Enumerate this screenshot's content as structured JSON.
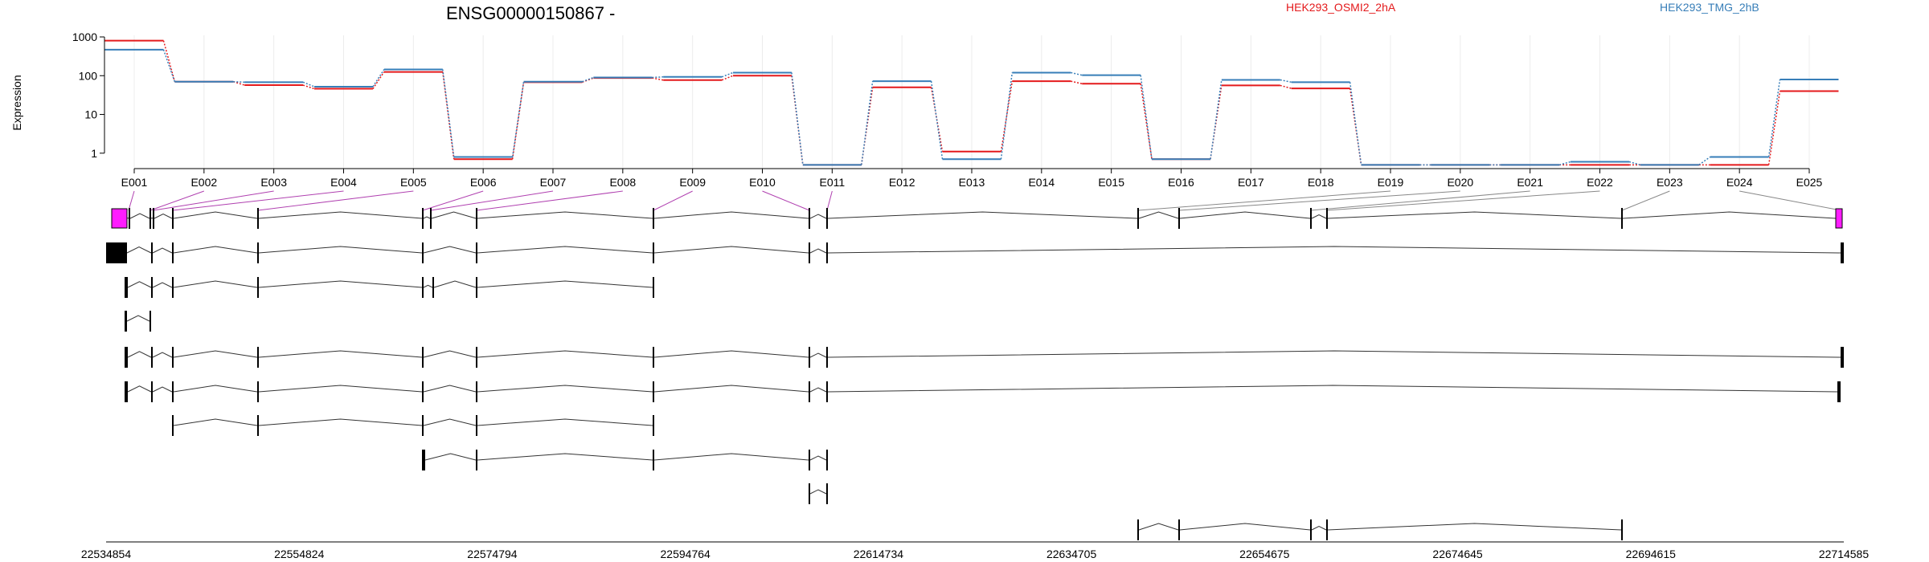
{
  "chart_data": {
    "type": "line",
    "title": "ENSG00000150867 -",
    "ylabel": "Expression",
    "yscale": "log",
    "yticks": [
      "1",
      "10",
      "100",
      "1000"
    ],
    "ylim": [
      0.4,
      1000
    ],
    "categories": [
      "E001",
      "E002",
      "E003",
      "E004",
      "E005",
      "E006",
      "E007",
      "E008",
      "E009",
      "E010",
      "E011",
      "E012",
      "E013",
      "E014",
      "E015",
      "E016",
      "E017",
      "E018",
      "E019",
      "E020",
      "E021",
      "E022",
      "E023",
      "E024",
      "E025"
    ],
    "series": [
      {
        "name": "HEK293_OSMI2_2hA",
        "color": "#e41a1c",
        "values": [
          800,
          70,
          57,
          46,
          125,
          0.7,
          68,
          87,
          77,
          100,
          0.5,
          50,
          1.1,
          72,
          62,
          0.7,
          56,
          47,
          0.5,
          0.5,
          0.5,
          0.5,
          0.5,
          0.5,
          40
        ]
      },
      {
        "name": "HEK293_TMG_2hB",
        "color": "#377eb8",
        "values": [
          470,
          70,
          68,
          52,
          145,
          0.8,
          70,
          90,
          93,
          120,
          0.5,
          72,
          0.7,
          120,
          103,
          0.7,
          78,
          68,
          0.5,
          0.5,
          0.5,
          0.6,
          0.5,
          0.8,
          80
        ]
      }
    ],
    "genomic_coordinates": [
      "22534854",
      "22554824",
      "22574794",
      "22594764",
      "22614734",
      "22634705",
      "22654675",
      "22674645",
      "22694615",
      "22714585"
    ],
    "grid": true,
    "legend_position": "top-right"
  }
}
